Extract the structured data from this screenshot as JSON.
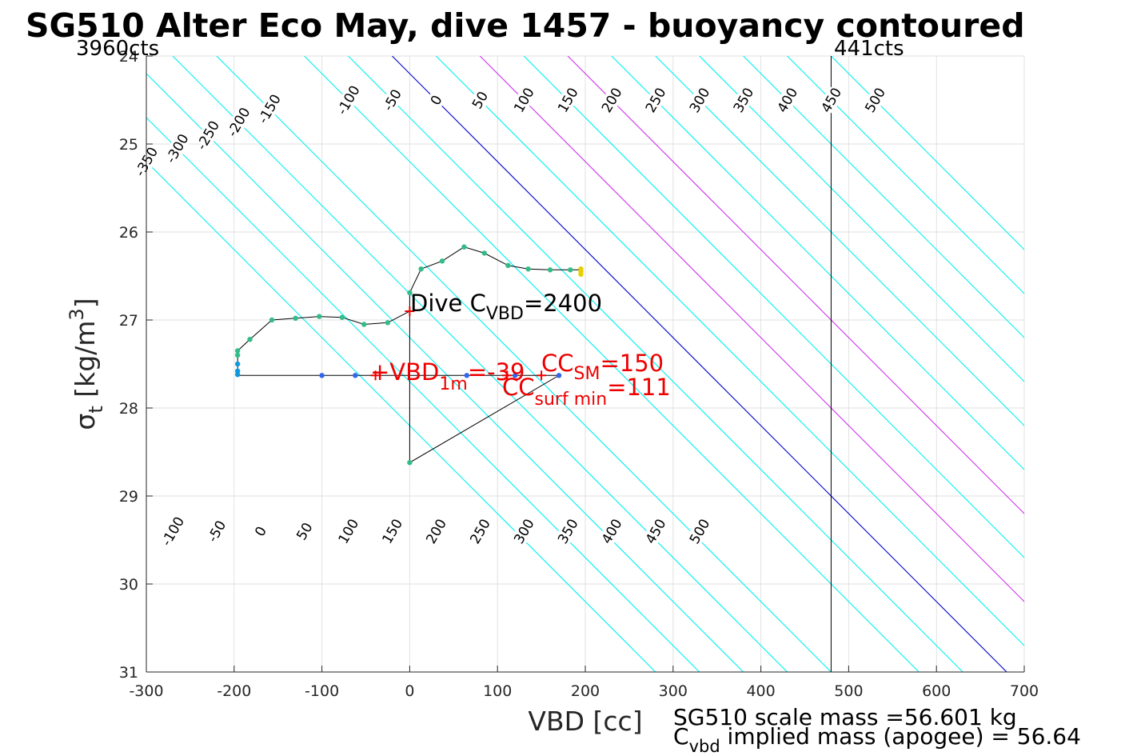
{
  "chart_data": {
    "type": "scatter",
    "title": "SG510 Alter Eco May, dive 1457 - buoyancy contoured",
    "xlabel": "VBD [cc]",
    "ylabel": {
      "main": "σ",
      "sub": "t",
      "rest": " [kg/m",
      "sup": "3",
      "close": "]"
    },
    "xlim": [
      -300,
      700
    ],
    "ylim": [
      24,
      31
    ],
    "y_reversed": true,
    "grid": true,
    "xticks": [
      -300,
      -200,
      -100,
      0,
      100,
      200,
      300,
      400,
      500,
      600,
      700
    ],
    "yticks": [
      24,
      25,
      26,
      27,
      28,
      29,
      30,
      31
    ],
    "xtick_labels": [
      "-300",
      "-200",
      "-100",
      "0",
      "100",
      "200",
      "300",
      "400",
      "500",
      "600",
      "700"
    ],
    "ytick_labels": [
      "24",
      "25",
      "26",
      "27",
      "28",
      "29",
      "30",
      "31"
    ],
    "top_left_label": "3960cts",
    "top_right_label": "441cts",
    "vline_x": 480,
    "contour_colors": {
      "cyan": "#00f0f0",
      "zero": "#0000cc",
      "magenta": "#cc33ee",
      "vline": "#000000"
    },
    "contours_top": [
      {
        "level": -350,
        "label": "-350",
        "x_at_25": -320,
        "color": "cyan"
      },
      {
        "level": -300,
        "label": "-300",
        "x_at_25": -270,
        "color": "cyan"
      },
      {
        "level": -250,
        "label": "-250",
        "x_at_25": -220,
        "color": "cyan"
      },
      {
        "level": -200,
        "label": "-200",
        "x_at_25": -170,
        "color": "cyan"
      },
      {
        "level": -150,
        "label": "-150",
        "x_at_25": -120,
        "color": "cyan"
      },
      {
        "level": -100,
        "label": "-100",
        "x_at_25": -20,
        "color": "cyan"
      },
      {
        "level": -50,
        "label": "-50",
        "x_at_25": 30,
        "color": "cyan"
      },
      {
        "level": 0,
        "label": "0",
        "x_at_25": 80,
        "color": "zero"
      },
      {
        "level": 50,
        "label": "50",
        "x_at_25": 130,
        "color": "cyan"
      },
      {
        "level": 100,
        "label": "100",
        "x_at_25": 180,
        "color": "magenta"
      },
      {
        "level": 150,
        "label": "150",
        "x_at_25": 230,
        "color": "cyan"
      },
      {
        "level": 200,
        "label": "200",
        "x_at_25": 280,
        "color": "magenta"
      },
      {
        "level": 250,
        "label": "250",
        "x_at_25": 330,
        "color": "cyan"
      },
      {
        "level": 300,
        "label": "300",
        "x_at_25": 380,
        "color": "cyan"
      },
      {
        "level": 350,
        "label": "350",
        "x_at_25": 430,
        "color": "cyan"
      },
      {
        "level": 400,
        "label": "400",
        "x_at_25": 480,
        "color": "cyan"
      },
      {
        "level": 450,
        "label": "450",
        "x_at_25": 530,
        "color": "cyan"
      },
      {
        "level": 500,
        "label": "500",
        "x_at_25": 580,
        "color": "cyan"
      }
    ],
    "contours_bottom_labels": [
      {
        "label": "-100",
        "x": -270
      },
      {
        "label": "-50",
        "x": -220
      },
      {
        "label": "0",
        "x": -170
      },
      {
        "label": "50",
        "x": -120
      },
      {
        "label": "100",
        "x": -70
      },
      {
        "label": "150",
        "x": -20
      },
      {
        "label": "200",
        "x": 30
      },
      {
        "label": "250",
        "x": 80
      },
      {
        "label": "300",
        "x": 130
      },
      {
        "label": "350",
        "x": 180
      },
      {
        "label": "400",
        "x": 230
      },
      {
        "label": "450",
        "x": 280
      },
      {
        "label": "500",
        "x": 330
      }
    ],
    "contour_slope_x_per_sigma": 100,
    "track": {
      "x": [
        195,
        183,
        160,
        135,
        112,
        85,
        62,
        37,
        13,
        0,
        0,
        -25,
        -52,
        -77,
        -103,
        -130,
        -157,
        -182,
        -196,
        -196,
        -196,
        -196,
        -196,
        -196,
        -100,
        -62,
        0,
        65,
        140,
        170,
        0,
        0
      ],
      "y": [
        26.43,
        26.43,
        26.43,
        26.42,
        26.38,
        26.24,
        26.17,
        26.33,
        26.42,
        26.69,
        26.9,
        27.03,
        27.05,
        26.97,
        26.96,
        26.98,
        27.0,
        27.22,
        27.35,
        27.4,
        27.5,
        27.6,
        27.62,
        27.63,
        27.63,
        27.63,
        27.63,
        27.63,
        27.63,
        27.63,
        28.62,
        26.7
      ]
    },
    "points": [
      {
        "x": 195,
        "y": 26.42,
        "color": "#e8d000"
      },
      {
        "x": 195,
        "y": 26.45,
        "color": "#e8d000"
      },
      {
        "x": 195,
        "y": 26.48,
        "color": "#e8d000"
      },
      {
        "x": 183,
        "y": 26.43,
        "color": "#33bb88"
      },
      {
        "x": 160,
        "y": 26.43,
        "color": "#33bb88"
      },
      {
        "x": 135,
        "y": 26.42,
        "color": "#33bb88"
      },
      {
        "x": 112,
        "y": 26.38,
        "color": "#33bb88"
      },
      {
        "x": 85,
        "y": 26.24,
        "color": "#33bb88"
      },
      {
        "x": 62,
        "y": 26.17,
        "color": "#33bb88"
      },
      {
        "x": 37,
        "y": 26.33,
        "color": "#33bb88"
      },
      {
        "x": 13,
        "y": 26.42,
        "color": "#33bb88"
      },
      {
        "x": 0,
        "y": 26.69,
        "color": "#33bb88"
      },
      {
        "x": -25,
        "y": 27.03,
        "color": "#33bb88"
      },
      {
        "x": -52,
        "y": 27.05,
        "color": "#33bb88"
      },
      {
        "x": -77,
        "y": 26.97,
        "color": "#33bb88"
      },
      {
        "x": -103,
        "y": 26.96,
        "color": "#33bb88"
      },
      {
        "x": -130,
        "y": 26.98,
        "color": "#33bb88"
      },
      {
        "x": -157,
        "y": 27.0,
        "color": "#33bb88"
      },
      {
        "x": -182,
        "y": 27.22,
        "color": "#33bb88"
      },
      {
        "x": -196,
        "y": 27.35,
        "color": "#33bb88"
      },
      {
        "x": -196,
        "y": 27.4,
        "color": "#33bb88"
      },
      {
        "x": -196,
        "y": 27.5,
        "color": "#1199dd"
      },
      {
        "x": -196,
        "y": 27.58,
        "color": "#1199dd"
      },
      {
        "x": -196,
        "y": 27.62,
        "color": "#1199dd"
      },
      {
        "x": -100,
        "y": 27.63,
        "color": "#3366ee"
      },
      {
        "x": -62,
        "y": 27.63,
        "color": "#3366ee"
      },
      {
        "x": 65,
        "y": 27.63,
        "color": "#3366ee"
      },
      {
        "x": 120,
        "y": 27.63,
        "color": "#3366ee"
      },
      {
        "x": 170,
        "y": 27.63,
        "color": "#3366ee"
      },
      {
        "x": 0,
        "y": 28.62,
        "color": "#33bb88"
      }
    ],
    "markers": [
      {
        "x": 0,
        "y": 26.9,
        "color": "#ee0000"
      },
      {
        "x": -39,
        "y": 27.63,
        "color": "#ee0000"
      },
      {
        "x": 150,
        "y": 27.63,
        "color": "#ee0000"
      },
      {
        "x": 111,
        "y": 27.63,
        "color": "#ee0000"
      }
    ],
    "annotations": {
      "dive": {
        "pre": "Dive C",
        "sub": "VBD",
        "post": "=2400",
        "x": 0,
        "y": 26.8
      },
      "vbd": {
        "pre": "+VBD",
        "sub": "1m",
        "post": "=-39",
        "x": -45,
        "y": 27.6
      },
      "ccsm": {
        "pre": "CC",
        "sub": "SM",
        "post": "=150",
        "x": 150,
        "y": 27.5
      },
      "ccsurf": {
        "pre": "CC",
        "sub": "surf min",
        "post": "=111",
        "x": 105,
        "y": 27.8
      }
    },
    "footer": {
      "line1": "SG510 scale mass =56.601 kg",
      "line2_pre": "C",
      "line2_sub": "vbd",
      "line2_post": " implied mass (apogee) = 56.64"
    }
  }
}
